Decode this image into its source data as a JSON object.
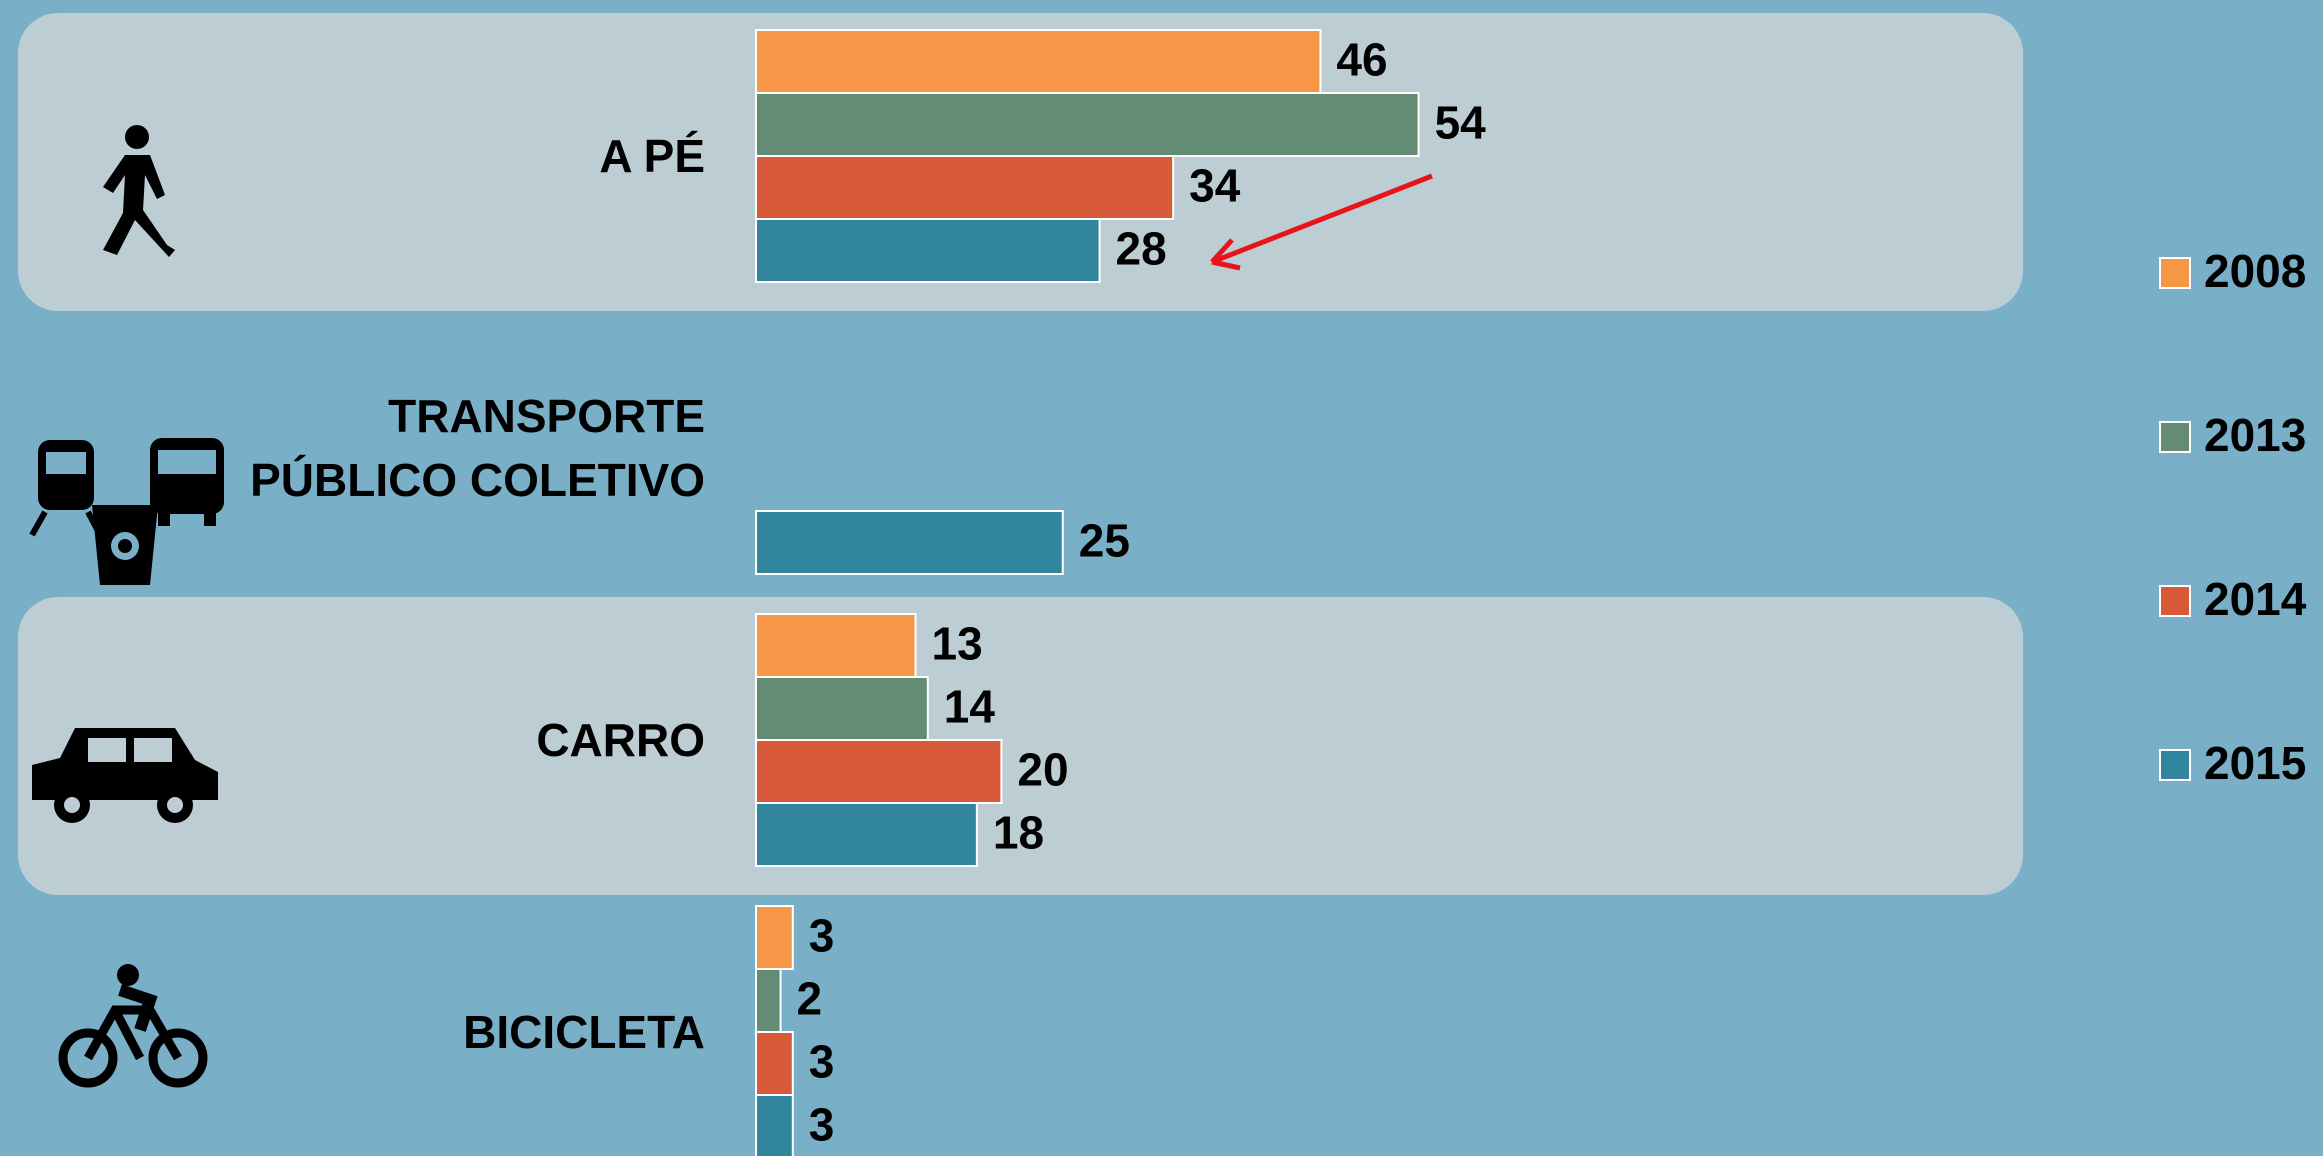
{
  "chart_data": {
    "type": "bar",
    "orientation": "horizontal",
    "categories": [
      "A PÉ",
      "TRANSPORTE PÚBLICO COLETIVO",
      "CARRO",
      "BICICLETA"
    ],
    "series": [
      {
        "name": "2008",
        "color": "#f79646",
        "values": [
          46,
          null,
          13,
          3
        ]
      },
      {
        "name": "2013",
        "color": "#648b73",
        "values": [
          54,
          null,
          14,
          2
        ]
      },
      {
        "name": "2014",
        "color": "#d75b38",
        "values": [
          34,
          null,
          20,
          3
        ]
      },
      {
        "name": "2015",
        "color": "#31869e",
        "values": [
          28,
          25,
          18,
          3
        ]
      }
    ],
    "legend": "right"
  }
}
